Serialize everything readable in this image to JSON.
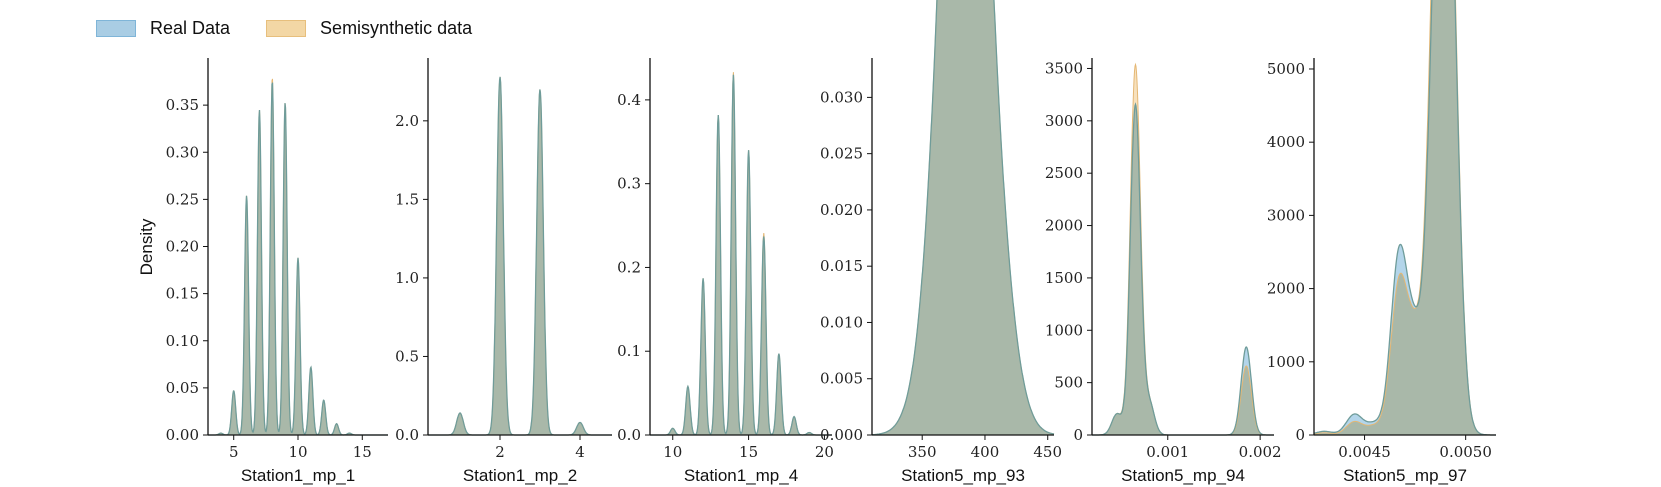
{
  "legend": {
    "items": [
      {
        "label": "Real Data",
        "fill": "#a9cde4",
        "stroke": "#7fb5d8"
      },
      {
        "label": "Semisynthetic data",
        "fill": "#f3d7a5",
        "stroke": "#e7bf7d"
      }
    ]
  },
  "colors": {
    "real_fill": "#8bbfde",
    "real_line": "#6aaad6",
    "semi_fill": "#f0c987",
    "overlap": "#a9b8a9",
    "edge": "#6f9c9a",
    "axis": "#111111"
  },
  "chart_data": [
    {
      "type": "area",
      "title": "",
      "xlabel": "Station1_mp_1",
      "ylabel": "Density",
      "xlim": [
        3,
        17
      ],
      "ylim": [
        0,
        0.4
      ],
      "xticks": [
        5,
        10,
        15
      ],
      "yticks": [
        0,
        0.05,
        0.1,
        0.15,
        0.2,
        0.25,
        0.3,
        0.35
      ],
      "xtick_labels": [
        "5",
        "10",
        "15"
      ],
      "ytick_labels": [
        "0.00",
        "0.05",
        "0.10",
        "0.15",
        "0.20",
        "0.25",
        "0.30",
        "0.35"
      ],
      "series": [
        {
          "name": "Real Data",
          "x": [
            4,
            5,
            6,
            7,
            8,
            9,
            10,
            11,
            12,
            13,
            14
          ],
          "y": [
            0.002,
            0.047,
            0.254,
            0.345,
            0.376,
            0.353,
            0.188,
            0.072,
            0.037,
            0.012,
            0.002
          ]
        },
        {
          "name": "Semisynthetic data",
          "x": [
            4,
            5,
            6,
            7,
            8,
            9,
            10,
            11,
            12,
            13,
            14
          ],
          "y": [
            0.002,
            0.047,
            0.254,
            0.345,
            0.38,
            0.353,
            0.188,
            0.072,
            0.037,
            0.012,
            0.002
          ]
        }
      ]
    },
    {
      "type": "area",
      "title": "",
      "xlabel": "Station1_mp_2",
      "ylabel": "",
      "xlim": [
        0.2,
        4.8
      ],
      "ylim": [
        0,
        2.4
      ],
      "xticks": [
        2,
        4
      ],
      "yticks": [
        0,
        0.5,
        1,
        1.5,
        2
      ],
      "xtick_labels": [
        "2",
        "4"
      ],
      "ytick_labels": [
        "0.0",
        "0.5",
        "1.0",
        "1.5",
        "2.0"
      ],
      "series": [
        {
          "name": "Real Data",
          "x": [
            1,
            2,
            3,
            4
          ],
          "y": [
            0.14,
            2.28,
            2.2,
            0.08
          ]
        },
        {
          "name": "Semisynthetic data",
          "x": [
            1,
            2,
            3,
            4
          ],
          "y": [
            0.14,
            2.28,
            2.2,
            0.08
          ]
        }
      ]
    },
    {
      "type": "area",
      "title": "",
      "xlabel": "Station1_mp_4",
      "ylabel": "",
      "xlim": [
        8.5,
        20.5
      ],
      "ylim": [
        0,
        0.45
      ],
      "xticks": [
        10,
        15,
        20
      ],
      "yticks": [
        0,
        0.1,
        0.2,
        0.3,
        0.4
      ],
      "xtick_labels": [
        "10",
        "15",
        "20"
      ],
      "ytick_labels": [
        "0.0",
        "0.1",
        "0.2",
        "0.3",
        "0.4"
      ],
      "series": [
        {
          "name": "Real Data",
          "x": [
            10,
            11,
            12,
            13,
            14,
            15,
            16,
            17,
            18,
            19
          ],
          "y": [
            0.008,
            0.058,
            0.187,
            0.382,
            0.43,
            0.34,
            0.237,
            0.097,
            0.022,
            0.003
          ]
        },
        {
          "name": "Semisynthetic data",
          "x": [
            10,
            11,
            12,
            13,
            14,
            15,
            16,
            17,
            18,
            19
          ],
          "y": [
            0.008,
            0.058,
            0.187,
            0.382,
            0.433,
            0.34,
            0.241,
            0.097,
            0.022,
            0.003
          ]
        }
      ]
    },
    {
      "type": "area",
      "title": "",
      "xlabel": "Station5_mp_93",
      "ylabel": "",
      "xlim": [
        310,
        455
      ],
      "ylim": [
        0,
        0.0335
      ],
      "xticks": [
        350,
        400,
        450
      ],
      "yticks": [
        0,
        0.005,
        0.01,
        0.015,
        0.02,
        0.025,
        0.03
      ],
      "xtick_labels": [
        "350",
        "400",
        "450"
      ],
      "ytick_labels": [
        "0.000",
        "0.005",
        "0.010",
        "0.015",
        "0.020",
        "0.025",
        "0.030"
      ],
      "series": [
        {
          "name": "Real Data",
          "x": [
            330,
            340,
            350,
            360,
            370,
            380,
            385,
            390,
            400,
            410,
            420,
            430,
            440
          ],
          "y": [
            0.0001,
            0.0007,
            0.003,
            0.011,
            0.024,
            0.0308,
            0.031,
            0.029,
            0.02,
            0.011,
            0.004,
            0.0009,
            0.0001
          ]
        },
        {
          "name": "Semisynthetic data",
          "x": [
            330,
            340,
            350,
            360,
            370,
            380,
            385,
            390,
            400,
            410,
            420,
            430,
            440
          ],
          "y": [
            0.0001,
            0.0007,
            0.003,
            0.011,
            0.024,
            0.0312,
            0.0316,
            0.029,
            0.02,
            0.011,
            0.004,
            0.0009,
            0.0001
          ]
        }
      ]
    },
    {
      "type": "area",
      "title": "",
      "xlabel": "Station5_mp_94",
      "ylabel": "",
      "xlim": [
        0.00018,
        0.00215
      ],
      "ylim": [
        0,
        3600
      ],
      "xticks": [
        0.001,
        0.002
      ],
      "yticks": [
        0,
        500,
        1000,
        1500,
        2000,
        2500,
        3000,
        3500
      ],
      "xtick_labels": [
        "0.001",
        "0.002"
      ],
      "ytick_labels": [
        "0",
        "500",
        "1000",
        "1500",
        "2000",
        "2500",
        "3000",
        "3500"
      ],
      "series": [
        {
          "name": "Real Data",
          "x": [
            0.0003,
            0.00045,
            0.00065,
            0.0008,
            0.001,
            0.0016,
            0.00185,
            0.002
          ],
          "y": [
            0,
            200,
            3150,
            300,
            0,
            0,
            840,
            0
          ]
        },
        {
          "name": "Semisynthetic data",
          "x": [
            0.0003,
            0.00045,
            0.00065,
            0.0008,
            0.001,
            0.0016,
            0.00185,
            0.002
          ],
          "y": [
            0,
            200,
            3530,
            300,
            0,
            0,
            660,
            0
          ]
        }
      ]
    },
    {
      "type": "area",
      "title": "",
      "xlabel": "Station5_mp_97",
      "ylabel": "",
      "xlim": [
        0.00425,
        0.00515
      ],
      "ylim": [
        0,
        5150
      ],
      "xticks": [
        0.0045,
        0.005
      ],
      "yticks": [
        0,
        1000,
        2000,
        3000,
        4000,
        5000
      ],
      "xtick_labels": [
        "0.0045",
        "0.0050"
      ],
      "ytick_labels": [
        "0",
        "1000",
        "2000",
        "3000",
        "4000",
        "5000"
      ],
      "series": [
        {
          "name": "Real Data",
          "x": [
            0.0043,
            0.00445,
            0.00455,
            0.00467,
            0.00475,
            0.00485,
            0.00489,
            0.00493,
            0.005
          ],
          "y": [
            50,
            280,
            150,
            2400,
            1200,
            4350,
            4360,
            4480,
            50
          ]
        },
        {
          "name": "Semisynthetic data",
          "x": [
            0.0043,
            0.00445,
            0.00455,
            0.00467,
            0.00475,
            0.00485,
            0.00489,
            0.00493,
            0.005
          ],
          "y": [
            30,
            180,
            120,
            2000,
            1200,
            4900,
            4600,
            4650,
            50
          ]
        }
      ]
    }
  ]
}
